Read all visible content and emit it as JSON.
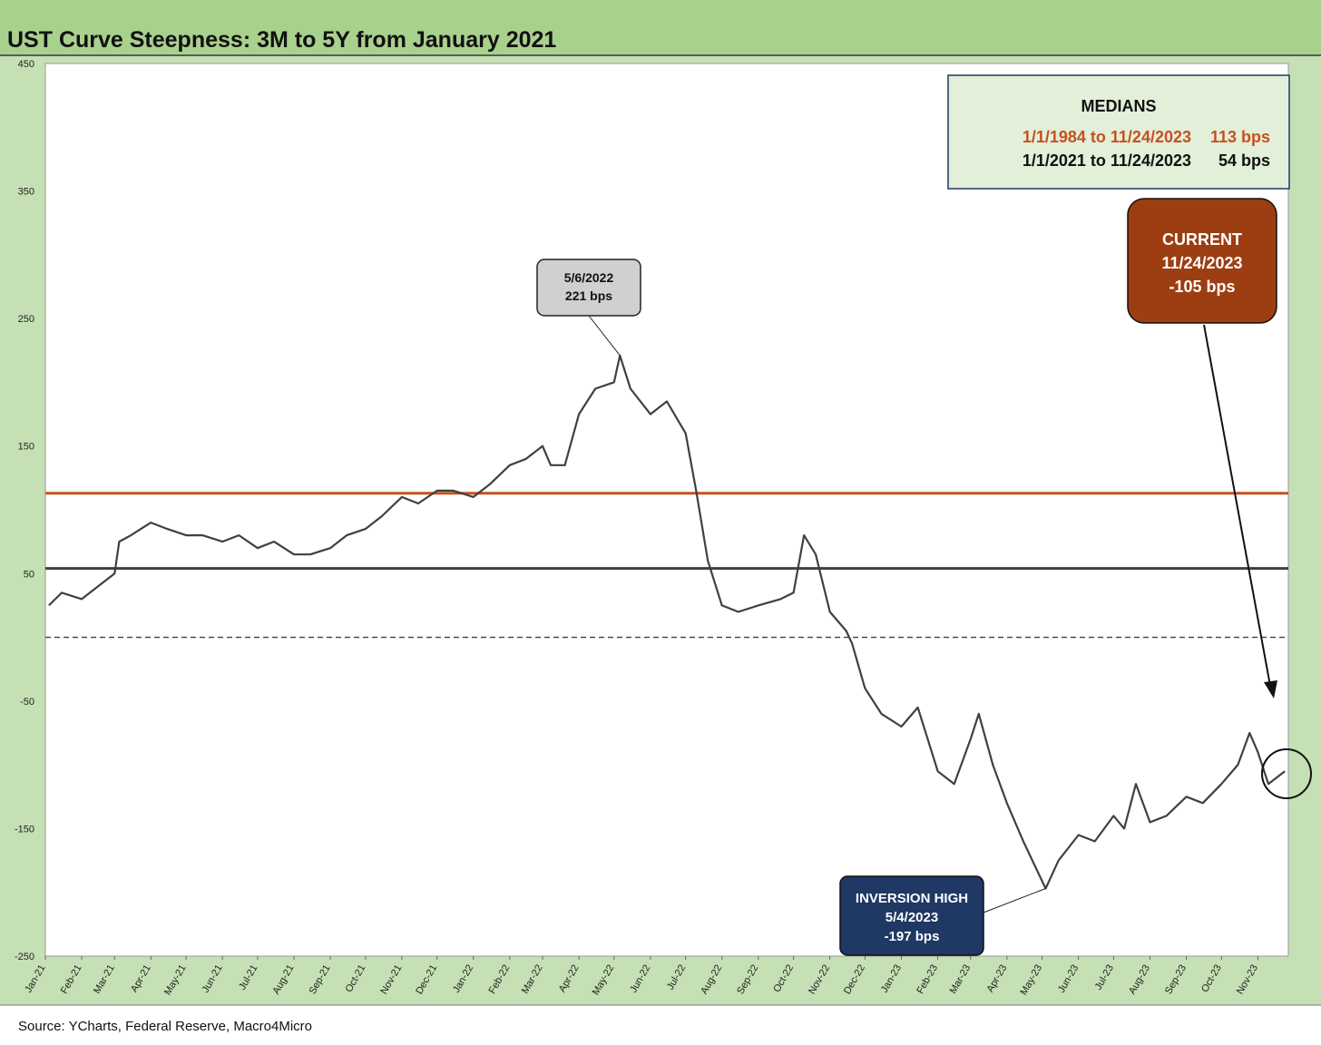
{
  "chart_data": {
    "type": "line",
    "title": "UST Curve Steepness: 3M to 5Y from January 2021",
    "source": "Source: YCharts, Federal Reserve, Macro4Micro",
    "ylim": [
      -250,
      450
    ],
    "yticks": [
      "450",
      "350",
      "250",
      "150",
      "50",
      "-50",
      "-150",
      "-250"
    ],
    "xticks": [
      "Jan-21",
      "Feb-21",
      "Mar-21",
      "Apr-21",
      "May-21",
      "Jun-21",
      "Jul-21",
      "Aug-21",
      "Sep-21",
      "Oct-21",
      "Nov-21",
      "Dec-21",
      "Jan-22",
      "Feb-22",
      "Mar-22",
      "Apr-22",
      "May-22",
      "Jun-22",
      "Jul-22",
      "Aug-22",
      "Sep-22",
      "Oct-22",
      "Nov-22",
      "Dec-22",
      "Jan-23",
      "Feb-23",
      "Mar-23",
      "Apr-23",
      "May-23",
      "Jun-23",
      "Jul-23",
      "Aug-23",
      "Sep-23",
      "Oct-23",
      "Nov-23"
    ],
    "grid": false,
    "series": {
      "x": [
        "2021-01-04",
        "2021-01-15",
        "2021-02-01",
        "2021-02-15",
        "2021-03-01",
        "2021-03-05",
        "2021-03-15",
        "2021-04-01",
        "2021-04-15",
        "2021-05-01",
        "2021-05-15",
        "2021-06-01",
        "2021-06-15",
        "2021-07-01",
        "2021-07-15",
        "2021-08-01",
        "2021-08-15",
        "2021-09-01",
        "2021-09-15",
        "2021-10-01",
        "2021-10-15",
        "2021-11-01",
        "2021-11-15",
        "2021-12-01",
        "2021-12-15",
        "2022-01-01",
        "2022-01-15",
        "2022-02-01",
        "2022-02-15",
        "2022-03-01",
        "2022-03-08",
        "2022-03-20",
        "2022-04-01",
        "2022-04-15",
        "2022-05-01",
        "2022-05-06",
        "2022-05-15",
        "2022-06-01",
        "2022-06-15",
        "2022-07-01",
        "2022-07-10",
        "2022-07-20",
        "2022-08-01",
        "2022-08-15",
        "2022-09-01",
        "2022-09-20",
        "2022-10-01",
        "2022-10-10",
        "2022-10-20",
        "2022-11-01",
        "2022-11-15",
        "2022-11-20",
        "2022-12-01",
        "2022-12-15",
        "2023-01-01",
        "2023-01-15",
        "2023-02-01",
        "2023-02-15",
        "2023-03-01",
        "2023-03-08",
        "2023-03-20",
        "2023-04-01",
        "2023-04-15",
        "2023-05-04",
        "2023-05-15",
        "2023-06-01",
        "2023-06-15",
        "2023-07-01",
        "2023-07-10",
        "2023-07-20",
        "2023-08-01",
        "2023-08-15",
        "2023-09-01",
        "2023-09-15",
        "2023-10-01",
        "2023-10-15",
        "2023-10-25",
        "2023-11-01",
        "2023-11-10",
        "2023-11-24"
      ],
      "y": [
        25,
        35,
        30,
        40,
        50,
        75,
        80,
        90,
        85,
        80,
        80,
        75,
        80,
        70,
        75,
        65,
        65,
        70,
        80,
        85,
        95,
        110,
        105,
        115,
        115,
        110,
        120,
        135,
        140,
        150,
        135,
        135,
        175,
        195,
        200,
        221,
        195,
        175,
        185,
        160,
        115,
        60,
        25,
        20,
        25,
        30,
        35,
        80,
        65,
        20,
        5,
        -5,
        -40,
        -60,
        -70,
        -55,
        -105,
        -115,
        -80,
        -60,
        -100,
        -130,
        -160,
        -197,
        -175,
        -155,
        -160,
        -140,
        -150,
        -115,
        -145,
        -140,
        -125,
        -130,
        -115,
        -100,
        -75,
        -90,
        -115,
        -105
      ]
    },
    "reference_lines": [
      {
        "value": 113,
        "color": "#c8501e"
      },
      {
        "value": 54,
        "color": "#404040"
      },
      {
        "value": 0,
        "color": "#404040",
        "style": "dashed"
      }
    ],
    "medians_box": {
      "heading": "MEDIANS",
      "rows": [
        {
          "range": "1/1/1984 to 11/24/2023",
          "value": "113 bps",
          "color": "#c8501e"
        },
        {
          "range": "1/1/2021 to 11/24/2023",
          "value": "54 bps",
          "color": "#111111"
        }
      ]
    },
    "annotations": {
      "peak": {
        "line1": "5/6/2022",
        "line2": "221 bps"
      },
      "current": {
        "line1": "CURRENT",
        "line2": "11/24/2023",
        "line3": "-105 bps"
      },
      "inversion": {
        "line1": "INVERSION HIGH",
        "line2": "5/4/2023",
        "line3": "-197 bps"
      }
    },
    "colors": {
      "frame_bg": "#c5e0b4",
      "title_bg": "#a9d18e",
      "series_line": "#404040",
      "current_box": "#9c3e12",
      "inversion_box": "#1f3864",
      "peak_box": "#d0d0d0"
    }
  }
}
